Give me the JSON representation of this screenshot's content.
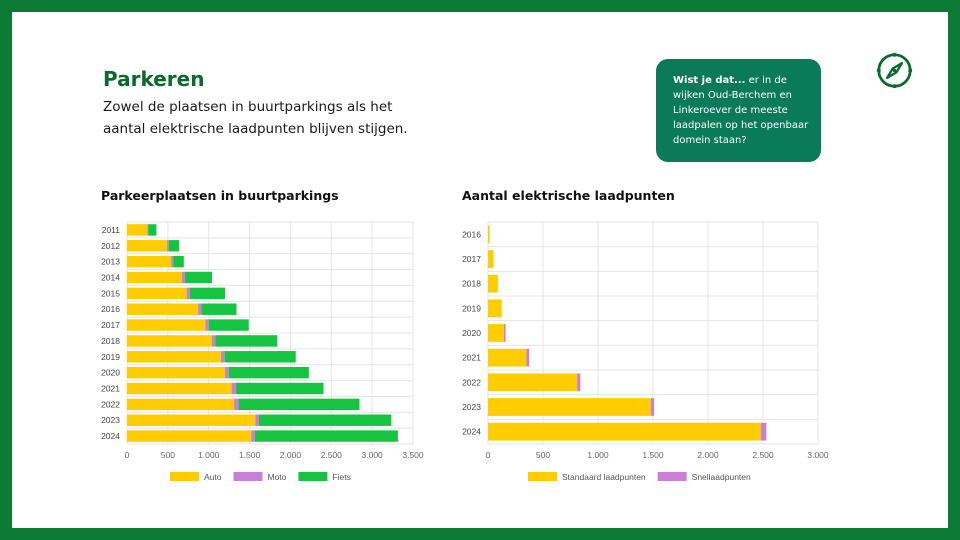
{
  "header": {
    "title": "Parkeren",
    "subtitle": "Zowel de plaatsen in buurtparkings als het aantal elektrische laadpunten blijven stijgen."
  },
  "info_box": {
    "lead": "Wist je dat...",
    "text": " er in  de wijken Oud-Berchem en Linkeroever de meeste laadpalen op het openbaar domein staan?"
  },
  "icons": {
    "corner": "compass-icon"
  },
  "colors": {
    "frame": "#0c7a34",
    "title": "#0a6a2c",
    "info_bg": "#0b7a58",
    "auto": "#ffcc00",
    "moto": "#c97fd6",
    "fiets": "#16c442",
    "standaard": "#ffcc00",
    "snel": "#c97fd6"
  },
  "chart_data": [
    {
      "type": "bar",
      "orientation": "horizontal",
      "stacked": true,
      "title": "Parkeerplaatsen in buurtparkings",
      "categories": [
        "2011",
        "2012",
        "2013",
        "2014",
        "2015",
        "2016",
        "2017",
        "2018",
        "2019",
        "2020",
        "2021",
        "2022",
        "2023",
        "2024"
      ],
      "series": [
        {
          "name": "Auto",
          "color": "#ffcc00",
          "values": [
            250,
            490,
            540,
            670,
            730,
            870,
            960,
            1040,
            1150,
            1200,
            1280,
            1310,
            1570,
            1520
          ]
        },
        {
          "name": "Moto",
          "color": "#c97fd6",
          "values": [
            10,
            20,
            25,
            40,
            40,
            40,
            40,
            40,
            45,
            45,
            55,
            55,
            45,
            45
          ]
        },
        {
          "name": "Fiets",
          "color": "#16c442",
          "values": [
            100,
            130,
            130,
            330,
            430,
            430,
            490,
            760,
            870,
            980,
            1070,
            1480,
            1620,
            1750
          ]
        }
      ],
      "xticks": [
        "0",
        "500",
        "1.000",
        "1.500",
        "2.000",
        "2.500",
        "3.000",
        "3.500"
      ],
      "xlim": [
        0,
        3500
      ],
      "grid": true,
      "legend": "bottom"
    },
    {
      "type": "bar",
      "orientation": "horizontal",
      "stacked": true,
      "title": "Aantal elektrische laadpunten",
      "categories": [
        "2016",
        "2017",
        "2018",
        "2019",
        "2020",
        "2021",
        "2022",
        "2023",
        "2024"
      ],
      "series": [
        {
          "name": "Standaard laadpunten",
          "color": "#ffcc00",
          "values": [
            15,
            50,
            90,
            125,
            145,
            350,
            810,
            1480,
            2480
          ]
        },
        {
          "name": "Snellaadpunten",
          "color": "#c97fd6",
          "values": [
            0,
            0,
            0,
            0,
            15,
            25,
            30,
            30,
            50
          ]
        }
      ],
      "xticks": [
        "0",
        "500",
        "1.000",
        "1.500",
        "2.000",
        "2.500",
        "3.000"
      ],
      "xlim": [
        0,
        3000
      ],
      "grid": true,
      "legend": "bottom"
    }
  ]
}
